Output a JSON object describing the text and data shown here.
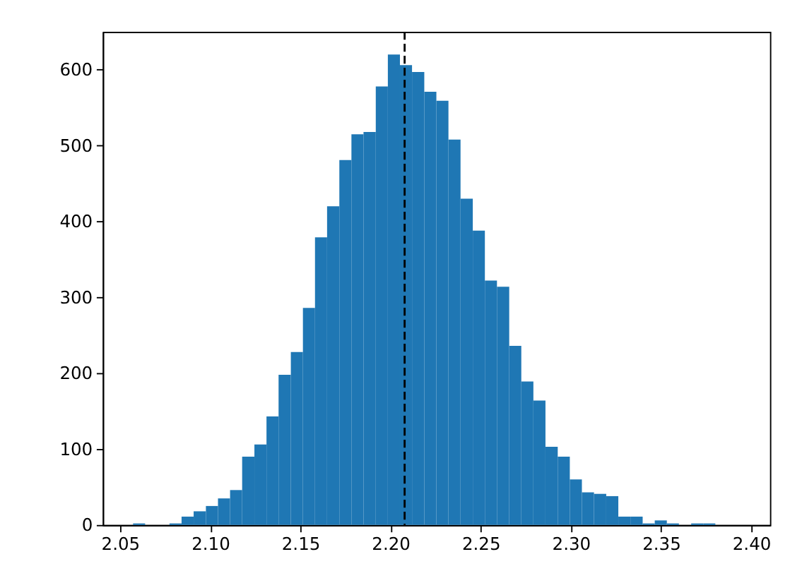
{
  "chart_data": {
    "type": "histogram",
    "color": "#1f77b4",
    "bins": [
      2.0572,
      2.0639,
      2.0707,
      2.0774,
      2.0841,
      2.0908,
      2.0976,
      2.1043,
      2.111,
      2.1177,
      2.1245,
      2.1312,
      2.1379,
      2.1447,
      2.1514,
      2.1581,
      2.1648,
      2.1716,
      2.1783,
      2.185,
      2.1918,
      2.1985,
      2.2052,
      2.2119,
      2.2187,
      2.2254,
      2.2321,
      2.2388,
      2.2456,
      2.2523,
      2.259,
      2.2658,
      2.2725,
      2.2792,
      2.2859,
      2.2927,
      2.2994,
      2.3061,
      2.3128,
      2.3196,
      2.3263,
      2.333,
      2.3398,
      2.3465,
      2.3532,
      2.3599,
      2.3667,
      2.3734,
      2.3801,
      2.3868,
      2.3936
    ],
    "values": [
      2,
      0,
      0,
      2,
      11,
      18,
      25,
      35,
      46,
      90,
      106,
      143,
      198,
      228,
      286,
      379,
      420,
      481,
      515,
      518,
      578,
      620,
      606,
      597,
      571,
      559,
      508,
      430,
      388,
      322,
      314,
      236,
      189,
      164,
      103,
      90,
      60,
      43,
      41,
      38,
      11,
      11,
      2,
      6,
      2,
      0,
      2,
      2,
      0,
      0
    ],
    "xlim": [
      2.0404,
      2.4104
    ],
    "ylim": [
      0,
      650
    ],
    "xticks": [
      2.05,
      {
        "value": 2.1,
        "label": "2.10"
      },
      2.15,
      {
        "value": 2.2,
        "label": "2.20"
      },
      2.25,
      {
        "value": 2.3,
        "label": "2.30"
      },
      2.35,
      {
        "value": 2.4,
        "label": "2.40"
      }
    ],
    "yticks": [
      0,
      100,
      200,
      300,
      400,
      500,
      600
    ],
    "grid": false,
    "ref_lines": [
      {
        "axis": "x",
        "value": 2.2078,
        "color": "#000000",
        "line_style": "dashed"
      }
    ]
  }
}
